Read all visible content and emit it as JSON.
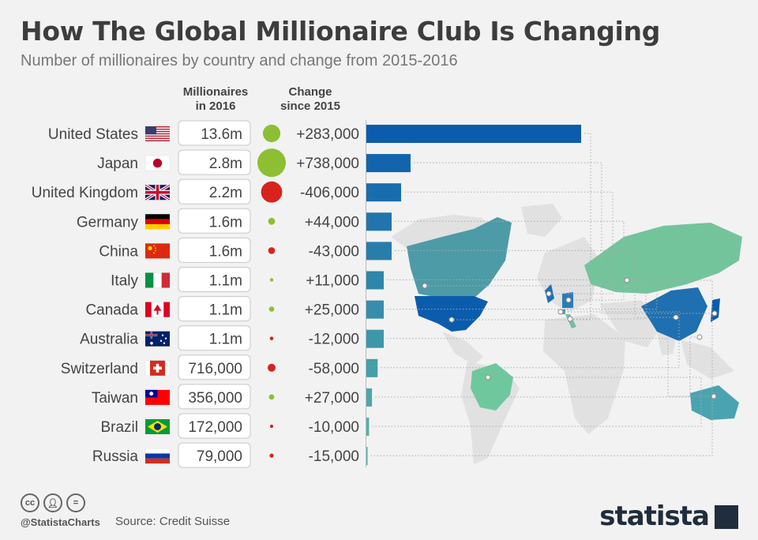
{
  "header": {
    "title": "How The Global Millionaire Club Is Changing",
    "subtitle": "Number of millionaires by country and change from 2015-2016"
  },
  "columns": {
    "millionaires": "Millionaires\nin 2016",
    "change": "Change\nsince 2015"
  },
  "footer": {
    "handle": "@StatistaCharts",
    "source": "Source: Credit Suisse",
    "brand": "statista",
    "icons": [
      "cc-icon",
      "by-icon",
      "nd-icon"
    ]
  },
  "colors": {
    "increase": "#8cc032",
    "decrease": "#d8231c",
    "bar_dark": "#0b5cad",
    "bar_light": "#5ab8a8",
    "map_land": "#e1e1e1"
  },
  "chart_data": {
    "type": "bar",
    "orientation": "horizontal",
    "categories": [
      "United States",
      "Japan",
      "United Kingdom",
      "Germany",
      "China",
      "Italy",
      "Canada",
      "Australia",
      "Switzerland",
      "Taiwan",
      "Brazil",
      "Russia"
    ],
    "flags": [
      "flag-us-icon",
      "flag-japan-icon",
      "flag-uk-icon",
      "flag-germany-icon",
      "flag-china-icon",
      "flag-italy-icon",
      "flag-canada-icon",
      "flag-australia-icon",
      "flag-switzerland-icon",
      "flag-taiwan-icon",
      "flag-brazil-icon",
      "flag-russia-icon"
    ],
    "millionaires_labels": [
      "13.6m",
      "2.8m",
      "2.2m",
      "1.6m",
      "1.6m",
      "1.1m",
      "1.1m",
      "1.1m",
      "716,000",
      "356,000",
      "172,000",
      "79,000"
    ],
    "values": [
      13600000,
      2800000,
      2200000,
      1600000,
      1600000,
      1100000,
      1100000,
      1100000,
      716000,
      356000,
      172000,
      79000
    ],
    "change": [
      283000,
      738000,
      -406000,
      44000,
      -43000,
      11000,
      25000,
      -12000,
      -58000,
      27000,
      -10000,
      -15000
    ],
    "change_labels": [
      "+283,000",
      "+738,000",
      "-406,000",
      "+44,000",
      "-43,000",
      "+11,000",
      "+25,000",
      "-12,000",
      "-58,000",
      "+27,000",
      "-10,000",
      "-15,000"
    ],
    "grid": false,
    "legend": "none"
  }
}
